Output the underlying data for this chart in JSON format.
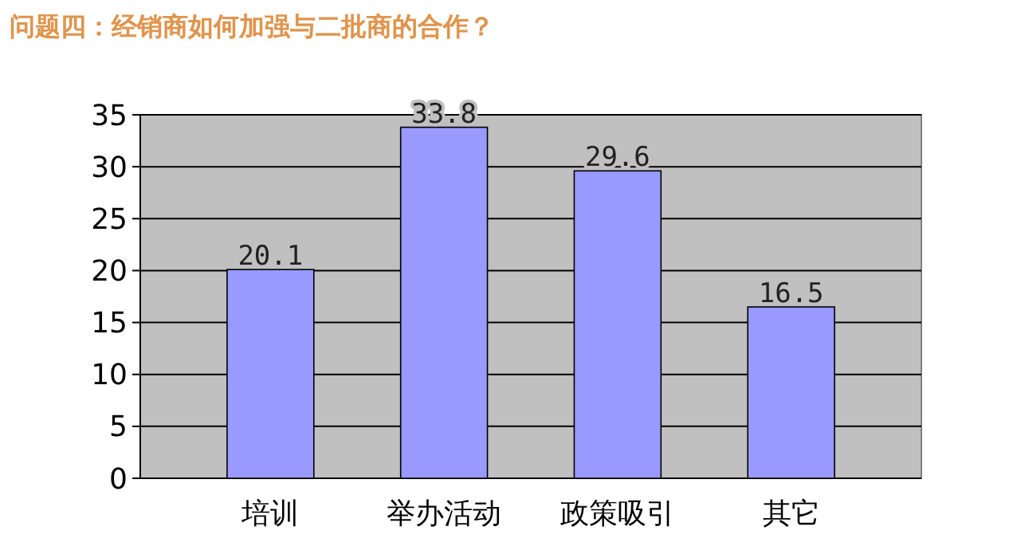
{
  "chart_data": {
    "type": "bar",
    "title": "问题四：经销商如何加强与二批商的合作？",
    "categories": [
      "培训",
      "举办活动",
      "政策吸引",
      "其它"
    ],
    "values": [
      20.1,
      33.8,
      29.6,
      16.5
    ],
    "color": "#9999ff",
    "ylim": [
      0,
      35
    ],
    "yticks": [
      0,
      5,
      10,
      15,
      20,
      25,
      30,
      35
    ],
    "grid": "y",
    "data_labels": true
  }
}
